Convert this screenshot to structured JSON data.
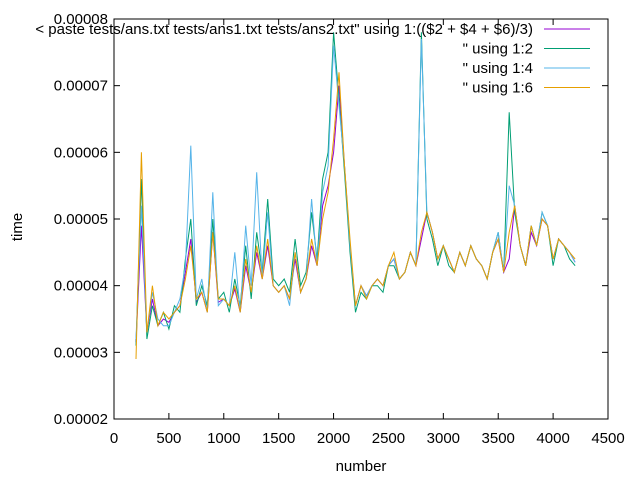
{
  "chart_data": {
    "type": "line",
    "title": "",
    "xlabel": "number",
    "ylabel": "time",
    "xlim": [
      0,
      4500
    ],
    "ylim": [
      2e-05,
      8e-05
    ],
    "x_ticks": [
      0,
      500,
      1000,
      1500,
      2000,
      2500,
      3000,
      3500,
      4000,
      4500
    ],
    "x_tick_labels": [
      "0",
      "500",
      "1000",
      "1500",
      "2000",
      "2500",
      "3000",
      "3500",
      "4000",
      "4500"
    ],
    "y_ticks": [
      2e-05,
      3e-05,
      4e-05,
      5e-05,
      6e-05,
      7e-05,
      8e-05
    ],
    "y_tick_labels": [
      "0.00002",
      "0.00003",
      "0.00004",
      "0.00005",
      "0.00006",
      "0.00007",
      "0.00008"
    ],
    "grid": false,
    "legend_position": "top-right",
    "series": [
      {
        "name": "< paste tests/ans.txt tests/ans1.txt tests/ans2.txt\" using 1:(($2 + $4 + $6)/3)",
        "color": "#9400d3",
        "x": [
          200,
          250,
          300,
          350,
          400,
          450,
          500,
          550,
          600,
          650,
          700,
          750,
          800,
          850,
          900,
          950,
          1000,
          1050,
          1100,
          1150,
          1200,
          1250,
          1300,
          1350,
          1400,
          1450,
          1500,
          1550,
          1600,
          1650,
          1700,
          1750,
          1800,
          1850,
          1900,
          1950,
          2000,
          2050,
          2100,
          2150,
          2200,
          2250,
          2300,
          2350,
          2400,
          2450,
          2500,
          2550,
          2600,
          2650,
          2700,
          2750,
          2800,
          2850,
          2900,
          2950,
          3000,
          3050,
          3100,
          3150,
          3200,
          3250,
          3300,
          3350,
          3400,
          3450,
          3500,
          3550,
          3600,
          3650,
          3700,
          3750,
          3800,
          3850,
          3900,
          3950,
          4000,
          4050,
          4100,
          4150,
          4200
        ],
        "y": [
          3.15e-05,
          4.9e-05,
          3.3e-05,
          3.8e-05,
          3.4e-05,
          3.5e-05,
          3.45e-05,
          3.6e-05,
          3.7e-05,
          4.2e-05,
          4.7e-05,
          3.75e-05,
          3.9e-05,
          3.6e-05,
          4.8e-05,
          3.75e-05,
          3.8e-05,
          3.7e-05,
          3.95e-05,
          3.6e-05,
          4.3e-05,
          3.9e-05,
          4.5e-05,
          4.1e-05,
          4.6e-05,
          4e-05,
          3.9e-05,
          4e-05,
          3.8e-05,
          4.4e-05,
          3.9e-05,
          4.1e-05,
          4.6e-05,
          4.3e-05,
          5.2e-05,
          5.5e-05,
          6e-05,
          7e-05,
          5.8e-05,
          4.6e-05,
          3.7e-05,
          4e-05,
          3.85e-05,
          4e-05,
          4.1e-05,
          4e-05,
          4.3e-05,
          4.4e-05,
          4.1e-05,
          4.2e-05,
          4.5e-05,
          4.3e-05,
          4.7e-05,
          5.1e-05,
          4.8e-05,
          4.4e-05,
          4.6e-05,
          4.4e-05,
          4.2e-05,
          4.5e-05,
          4.3e-05,
          4.6e-05,
          4.4e-05,
          4.3e-05,
          4.1e-05,
          4.5e-05,
          4.7e-05,
          4.2e-05,
          4.4e-05,
          5.2e-05,
          4.6e-05,
          4.3e-05,
          4.8e-05,
          4.6e-05,
          5e-05,
          4.9e-05,
          4.4e-05,
          4.7e-05,
          4.6e-05,
          4.5e-05,
          4.35e-05
        ]
      },
      {
        "name": "\" using 1:2",
        "color": "#009e73",
        "x": [
          200,
          250,
          300,
          350,
          400,
          450,
          500,
          550,
          600,
          650,
          700,
          750,
          800,
          850,
          900,
          950,
          1000,
          1050,
          1100,
          1150,
          1200,
          1250,
          1300,
          1350,
          1400,
          1450,
          1500,
          1550,
          1600,
          1650,
          1700,
          1750,
          1800,
          1850,
          1900,
          1950,
          2000,
          2050,
          2100,
          2150,
          2200,
          2250,
          2300,
          2350,
          2400,
          2450,
          2500,
          2550,
          2600,
          2650,
          2700,
          2750,
          2800,
          2850,
          2900,
          2950,
          3000,
          3050,
          3100,
          3150,
          3200,
          3250,
          3300,
          3350,
          3400,
          3450,
          3500,
          3550,
          3600,
          3650,
          3700,
          3750,
          3800,
          3850,
          3900,
          3950,
          4000,
          4050,
          4100,
          4150,
          4200
        ],
        "y": [
          3.1e-05,
          5.6e-05,
          3.2e-05,
          3.7e-05,
          3.4e-05,
          3.6e-05,
          3.35e-05,
          3.7e-05,
          3.6e-05,
          4.4e-05,
          5e-05,
          3.7e-05,
          4e-05,
          3.7e-05,
          5e-05,
          3.8e-05,
          3.9e-05,
          3.6e-05,
          4.1e-05,
          3.7e-05,
          4.6e-05,
          3.8e-05,
          4.8e-05,
          4.2e-05,
          5.3e-05,
          4.1e-05,
          4e-05,
          4.1e-05,
          3.9e-05,
          4.7e-05,
          4e-05,
          4.2e-05,
          5.1e-05,
          4.4e-05,
          5.6e-05,
          6e-05,
          7.8e-05,
          6.8e-05,
          5.7e-05,
          4.5e-05,
          3.6e-05,
          3.9e-05,
          3.8e-05,
          4e-05,
          4e-05,
          3.9e-05,
          4.3e-05,
          4.3e-05,
          4.1e-05,
          4.2e-05,
          4.5e-05,
          4.3e-05,
          7.8e-05,
          5e-05,
          4.7e-05,
          4.3e-05,
          4.6e-05,
          4.3e-05,
          4.2e-05,
          4.5e-05,
          4.3e-05,
          4.6e-05,
          4.4e-05,
          4.3e-05,
          4.1e-05,
          4.5e-05,
          4.8e-05,
          4.2e-05,
          6.6e-05,
          5.1e-05,
          4.6e-05,
          4.3e-05,
          4.9e-05,
          4.6e-05,
          5.1e-05,
          4.9e-05,
          4.3e-05,
          4.7e-05,
          4.6e-05,
          4.4e-05,
          4.3e-05
        ]
      },
      {
        "name": "\" using 1:4",
        "color": "#56b4e9",
        "x": [
          200,
          250,
          300,
          350,
          400,
          450,
          500,
          550,
          600,
          650,
          700,
          750,
          800,
          850,
          900,
          950,
          1000,
          1050,
          1100,
          1150,
          1200,
          1250,
          1300,
          1350,
          1400,
          1450,
          1500,
          1550,
          1600,
          1650,
          1700,
          1750,
          1800,
          1850,
          1900,
          1950,
          2000,
          2050,
          2100,
          2150,
          2200,
          2250,
          2300,
          2350,
          2400,
          2450,
          2500,
          2550,
          2600,
          2650,
          2700,
          2750,
          2800,
          2850,
          2900,
          2950,
          3000,
          3050,
          3100,
          3150,
          3200,
          3250,
          3300,
          3350,
          3400,
          3450,
          3500,
          3550,
          3600,
          3650,
          3700,
          3750,
          3800,
          3850,
          3900,
          3950,
          4000,
          4050,
          4100,
          4150,
          4200
        ],
        "y": [
          3.2e-05,
          5.2e-05,
          3.3e-05,
          3.9e-05,
          3.5e-05,
          3.4e-05,
          3.4e-05,
          3.6e-05,
          3.8e-05,
          4.3e-05,
          6.1e-05,
          3.8e-05,
          4.1e-05,
          3.6e-05,
          5.4e-05,
          3.7e-05,
          3.8e-05,
          3.7e-05,
          4.5e-05,
          3.6e-05,
          4.9e-05,
          4e-05,
          5.7e-05,
          4.1e-05,
          5.1e-05,
          4e-05,
          3.9e-05,
          4e-05,
          3.7e-05,
          4.5e-05,
          3.9e-05,
          4.1e-05,
          5.3e-05,
          4.3e-05,
          5.4e-05,
          5.8e-05,
          7.6e-05,
          6.7e-05,
          5.8e-05,
          4.6e-05,
          3.7e-05,
          4e-05,
          3.85e-05,
          4e-05,
          4.1e-05,
          4e-05,
          4.3e-05,
          4.4e-05,
          4.1e-05,
          4.2e-05,
          4.5e-05,
          4.3e-05,
          7.7e-05,
          5.1e-05,
          4.8e-05,
          4.4e-05,
          4.6e-05,
          4.4e-05,
          4.2e-05,
          4.5e-05,
          4.3e-05,
          4.6e-05,
          4.4e-05,
          4.3e-05,
          4.1e-05,
          4.5e-05,
          4.8e-05,
          4.2e-05,
          5.5e-05,
          5.2e-05,
          4.6e-05,
          4.3e-05,
          4.9e-05,
          4.6e-05,
          5.1e-05,
          4.9e-05,
          4.4e-05,
          4.7e-05,
          4.6e-05,
          4.5e-05,
          4.35e-05
        ]
      },
      {
        "name": "\" using 1:6",
        "color": "#e69f00",
        "x": [
          200,
          250,
          300,
          350,
          400,
          450,
          500,
          550,
          600,
          650,
          700,
          750,
          800,
          850,
          900,
          950,
          1000,
          1050,
          1100,
          1150,
          1200,
          1250,
          1300,
          1350,
          1400,
          1450,
          1500,
          1550,
          1600,
          1650,
          1700,
          1750,
          1800,
          1850,
          1900,
          1950,
          2000,
          2050,
          2100,
          2150,
          2200,
          2250,
          2300,
          2350,
          2400,
          2450,
          2500,
          2550,
          2600,
          2650,
          2700,
          2750,
          2800,
          2850,
          2900,
          2950,
          3000,
          3050,
          3100,
          3150,
          3200,
          3250,
          3300,
          3350,
          3400,
          3450,
          3500,
          3550,
          3600,
          3650,
          3700,
          3750,
          3800,
          3850,
          3900,
          3950,
          4000,
          4050,
          4100,
          4150,
          4200
        ],
        "y": [
          2.9e-05,
          6e-05,
          3.3e-05,
          4e-05,
          3.4e-05,
          3.6e-05,
          3.5e-05,
          3.6e-05,
          3.7e-05,
          4.1e-05,
          4.6e-05,
          3.8e-05,
          3.9e-05,
          3.6e-05,
          4.8e-05,
          3.8e-05,
          3.8e-05,
          3.7e-05,
          4e-05,
          3.6e-05,
          4.4e-05,
          3.9e-05,
          4.6e-05,
          4.1e-05,
          4.7e-05,
          4e-05,
          3.9e-05,
          4e-05,
          3.8e-05,
          4.5e-05,
          3.9e-05,
          4.1e-05,
          4.7e-05,
          4.3e-05,
          5e-05,
          5.4e-05,
          6.2e-05,
          7.2e-05,
          5.8e-05,
          4.7e-05,
          3.7e-05,
          4e-05,
          3.8e-05,
          4e-05,
          4.1e-05,
          4e-05,
          4.3e-05,
          4.5e-05,
          4.1e-05,
          4.2e-05,
          4.5e-05,
          4.3e-05,
          4.8e-05,
          5.1e-05,
          4.8e-05,
          4.4e-05,
          4.6e-05,
          4.4e-05,
          4.2e-05,
          4.5e-05,
          4.3e-05,
          4.6e-05,
          4.4e-05,
          4.3e-05,
          4.1e-05,
          4.5e-05,
          4.7e-05,
          4.2e-05,
          4.8e-05,
          5.2e-05,
          4.6e-05,
          4.3e-05,
          4.9e-05,
          4.6e-05,
          5e-05,
          4.9e-05,
          4.4e-05,
          4.7e-05,
          4.6e-05,
          4.5e-05,
          4.4e-05
        ]
      }
    ]
  }
}
